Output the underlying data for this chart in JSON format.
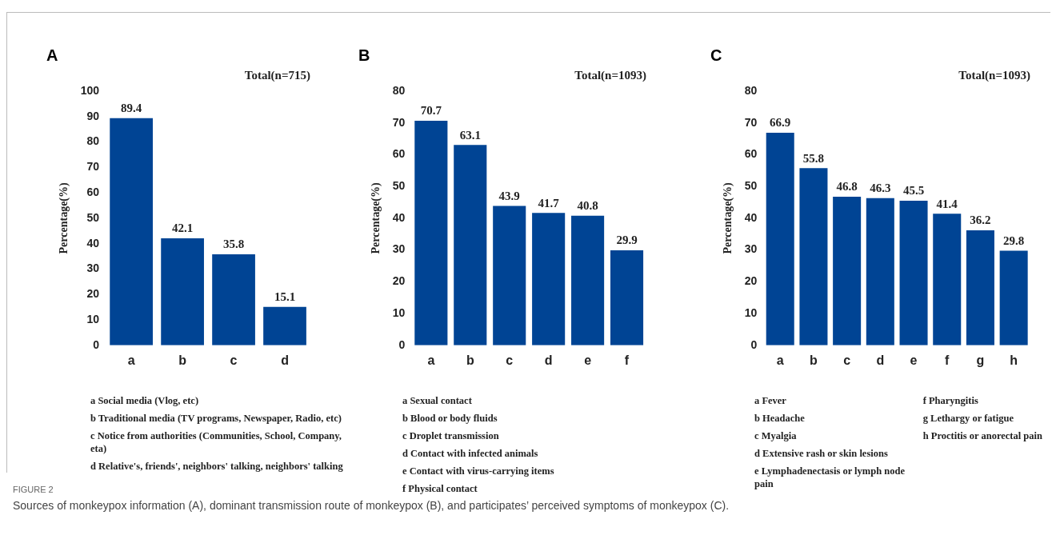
{
  "chart_data": [
    {
      "type": "bar",
      "title": "Total(n=715)",
      "ylabel": "Percentage(%)",
      "categories": [
        "a",
        "b",
        "c",
        "d"
      ],
      "values": [
        89.4,
        42.1,
        35.8,
        15.1
      ],
      "color": "#004494",
      "ylim": [
        0,
        100
      ],
      "yticks": [
        0,
        10,
        20,
        30,
        40,
        50,
        60,
        70,
        80,
        90,
        100
      ],
      "grid": false,
      "legend": false,
      "data_labels": true,
      "annotations": [
        "A",
        "a Social media (Vlog, etc)",
        "b Traditional media (TV programs, Newspaper, Radio, etc)",
        "c Notice from authorities (Communities, School, Company, eta)",
        "d Relative's, friends', neighbors' talking, neighbors' talking"
      ]
    },
    {
      "type": "bar",
      "title": "Total(n=1093)",
      "ylabel": "Percentage(%)",
      "categories": [
        "a",
        "b",
        "c",
        "d",
        "e",
        "f"
      ],
      "values": [
        70.7,
        63.1,
        43.9,
        41.7,
        40.8,
        29.9
      ],
      "color": "#004494",
      "ylim": [
        0,
        80
      ],
      "yticks": [
        0,
        10,
        20,
        30,
        40,
        50,
        60,
        70,
        80
      ],
      "grid": false,
      "legend": false,
      "data_labels": true,
      "annotations": [
        "B",
        "a Sexual contact",
        "b Blood or body fluids",
        "c Droplet transmission",
        "d Contact with infected animals",
        "e Contact with virus-carrying items",
        "f Physical contact"
      ]
    },
    {
      "type": "bar",
      "title": "Total(n=1093)",
      "ylabel": "Percentage(%)",
      "categories": [
        "a",
        "b",
        "c",
        "d",
        "e",
        "f",
        "g",
        "h"
      ],
      "values": [
        66.9,
        55.8,
        46.8,
        46.3,
        45.5,
        41.4,
        36.2,
        29.8
      ],
      "color": "#004494",
      "ylim": [
        0,
        80
      ],
      "yticks": [
        0,
        10,
        20,
        30,
        40,
        50,
        60,
        70,
        80
      ],
      "grid": false,
      "legend": false,
      "data_labels": true,
      "annotations": [
        "C",
        "a Fever",
        "b Headache",
        "c Myalgia",
        "d Extensive rash or skin lesions",
        "e Lymphadenectasis or lymph node pain",
        "f Pharyngitis",
        "g Lethargy or fatigue",
        "h Proctitis or anorectal pain"
      ]
    },
    {
      "type": "other",
      "annotations": [
        "FIGURE 2",
        "Sources of monkeypox information (A), dominant transmission route of monkeypox (B), and participates’ perceived symptoms of monkeypox (C)."
      ]
    }
  ]
}
